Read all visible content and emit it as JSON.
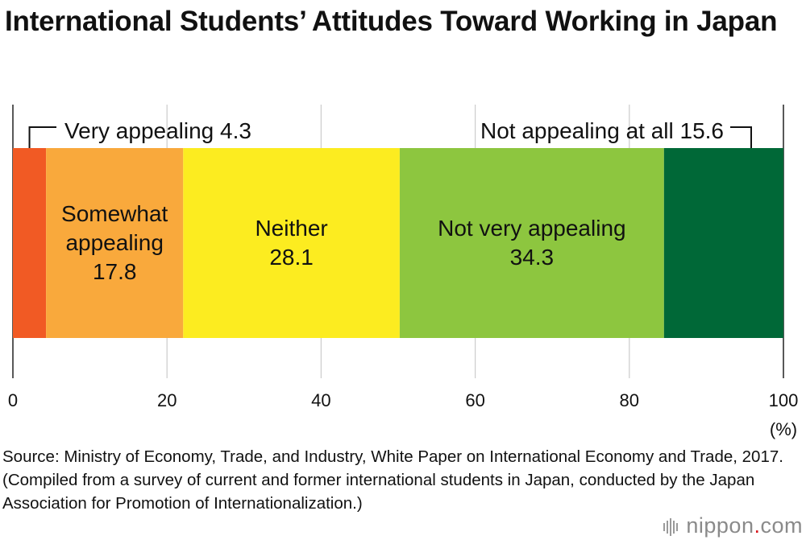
{
  "title": "International Students’ Attitudes Toward Working in Japan",
  "source": "Source: Ministry of Economy, Trade, and Industry, White Paper on International Economy and Trade, 2017. (Compiled from a survey of current and former international students in Japan, conducted by the Japan Association for Promotion of Internationalization.)",
  "logo": {
    "name": "nippon",
    "dot": ".",
    "tld": "com"
  },
  "chart_data": {
    "type": "bar",
    "orientation": "horizontal-stacked",
    "title": "International Students’ Attitudes Toward Working in Japan",
    "xlim": [
      0,
      100
    ],
    "xticks": [
      "0",
      "20",
      "40",
      "60",
      "80",
      "100"
    ],
    "unit": "(%)",
    "grid": true,
    "series": [
      {
        "name": "Very appealing",
        "value": 4.3,
        "color": "#f15a24",
        "label": [
          "Very appealing  4.3"
        ],
        "label_position": "callout-above",
        "label_color": "#111111"
      },
      {
        "name": "Somewhat appealing",
        "value": 17.8,
        "color": "#f9a93c",
        "label": [
          "Somewhat",
          "appealing",
          "17.8"
        ],
        "label_position": "inside",
        "label_color": "#111111"
      },
      {
        "name": "Neither",
        "value": 28.1,
        "color": "#fcec20",
        "label": [
          "Neither",
          "28.1"
        ],
        "label_position": "inside",
        "label_color": "#111111"
      },
      {
        "name": "Not very appealing",
        "value": 34.3,
        "color": "#8dc63f",
        "label": [
          "Not very appealing",
          "34.3"
        ],
        "label_position": "inside",
        "label_color": "#111111"
      },
      {
        "name": "Not appealing at all",
        "value": 15.6,
        "color": "#006837",
        "label": [
          "Not appealing at all  15.6"
        ],
        "label_position": "callout-above",
        "label_color": "#111111"
      }
    ]
  }
}
